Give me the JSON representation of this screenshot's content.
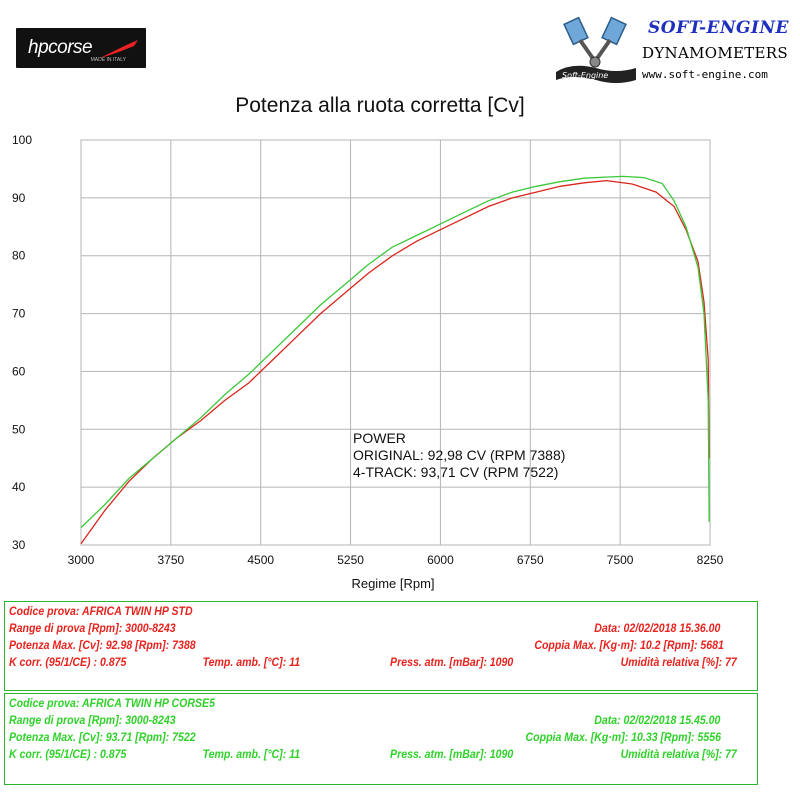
{
  "brand": {
    "hp_logo_text": "hpcorse",
    "hp_logo_sub": "MADE IN ITALY",
    "se_title": "SOFT-ENGINE",
    "se_subtitle": "DYNAMOMETERS",
    "se_url": "www.soft-engine.com",
    "se_logo_caption": "Soft-Engine"
  },
  "chart_data": {
    "type": "line",
    "title": "Potenza alla ruota corretta [Cv]",
    "xlabel": "Regime [Rpm]",
    "ylabel": "",
    "xlim": [
      3000,
      8250
    ],
    "ylim": [
      30,
      100
    ],
    "x_ticks": [
      "3000",
      "3750",
      "4500",
      "5250",
      "6000",
      "6750",
      "7500",
      "8250"
    ],
    "y_ticks": [
      "30",
      "40",
      "50",
      "60",
      "70",
      "80",
      "90",
      "100"
    ],
    "grid": true,
    "series": [
      {
        "name": "ORIGINAL",
        "color": "#d9261c",
        "points": [
          [
            3000,
            30.2
          ],
          [
            3200,
            36
          ],
          [
            3400,
            41
          ],
          [
            3600,
            45
          ],
          [
            3800,
            48.5
          ],
          [
            4000,
            51.5
          ],
          [
            4200,
            55
          ],
          [
            4400,
            58
          ],
          [
            4600,
            62
          ],
          [
            4800,
            66
          ],
          [
            5000,
            70
          ],
          [
            5200,
            73.5
          ],
          [
            5400,
            77
          ],
          [
            5600,
            80
          ],
          [
            5800,
            82.5
          ],
          [
            6000,
            84.5
          ],
          [
            6200,
            86.5
          ],
          [
            6400,
            88.5
          ],
          [
            6600,
            90
          ],
          [
            6800,
            91
          ],
          [
            7000,
            92
          ],
          [
            7200,
            92.6
          ],
          [
            7388,
            92.98
          ],
          [
            7600,
            92.4
          ],
          [
            7800,
            91
          ],
          [
            7950,
            88.5
          ],
          [
            8050,
            84.5
          ],
          [
            8150,
            79
          ],
          [
            8200,
            72
          ],
          [
            8235,
            62
          ],
          [
            8243,
            45
          ]
        ]
      },
      {
        "name": "4-TRACK",
        "color": "#3cc83a",
        "points": [
          [
            3000,
            33
          ],
          [
            3200,
            37
          ],
          [
            3400,
            41.5
          ],
          [
            3600,
            45
          ],
          [
            3800,
            48.5
          ],
          [
            4000,
            52
          ],
          [
            4200,
            56
          ],
          [
            4400,
            59.5
          ],
          [
            4600,
            63.5
          ],
          [
            4800,
            67.5
          ],
          [
            5000,
            71.5
          ],
          [
            5200,
            75
          ],
          [
            5400,
            78.5
          ],
          [
            5600,
            81.5
          ],
          [
            5800,
            83.5
          ],
          [
            6000,
            85.5
          ],
          [
            6200,
            87.5
          ],
          [
            6400,
            89.5
          ],
          [
            6600,
            91
          ],
          [
            6800,
            92
          ],
          [
            7000,
            92.8
          ],
          [
            7200,
            93.4
          ],
          [
            7400,
            93.6
          ],
          [
            7522,
            93.71
          ],
          [
            7700,
            93.5
          ],
          [
            7850,
            92.5
          ],
          [
            7950,
            89.5
          ],
          [
            8050,
            85
          ],
          [
            8150,
            78
          ],
          [
            8200,
            70
          ],
          [
            8235,
            55
          ],
          [
            8243,
            34
          ]
        ]
      }
    ],
    "annotation": [
      "POWER",
      "ORIGINAL: 92,98 CV (RPM 7388)",
      "4-TRACK: 93,71 CV (RPM 7522)"
    ]
  },
  "test1": {
    "color": "#e8231e",
    "codice": "Codice prova: AFRICA TWIN HP STD",
    "range": "Range di prova [Rpm]: 3000-8243",
    "data": "Data: 02/02/2018   15.36.00",
    "potenza": "Potenza Max. [Cv]: 92.98   [Rpm]: 7388",
    "coppia": "Coppia Max. [Kg·m]: 10.2   [Rpm]: 5681",
    "kcorr": "K corr. (95/1/CE) : 0.875",
    "temp": "Temp. amb. [°C]: 11",
    "press": "Press. atm. [mBar]: 1090",
    "umid": "Umidità relativa [%]: 77"
  },
  "test2": {
    "color": "#2fd12a",
    "codice": "Codice prova: AFRICA TWIN HP CORSE5",
    "range": "Range di prova [Rpm]: 3000-8243",
    "data": "Data: 02/02/2018   15.45.00",
    "potenza": "Potenza Max. [Cv]: 93.71   [Rpm]: 7522",
    "coppia": "Coppia Max. [Kg·m]: 10.33   [Rpm]: 5556",
    "kcorr": "K corr. (95/1/CE) : 0.875",
    "temp": "Temp. amb. [°C]: 11",
    "press": "Press. atm. [mBar]: 1090",
    "umid": "Umidità relativa [%]: 77"
  }
}
